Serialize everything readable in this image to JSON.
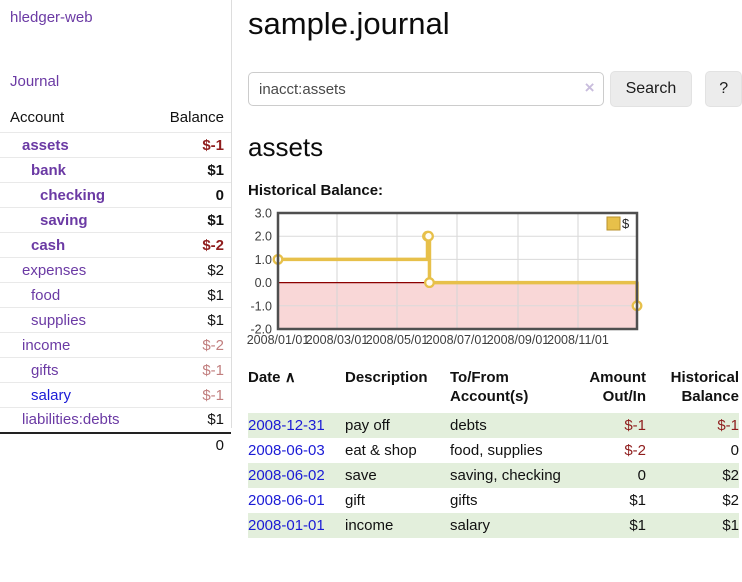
{
  "sidebar": {
    "brand": "hledger-web",
    "journal_link": "Journal",
    "accounts_table": {
      "headers": {
        "account": "Account",
        "balance": "Balance"
      },
      "rows": [
        {
          "label": "assets",
          "indent": 1,
          "bold": true,
          "link_style": "purple",
          "balance": "$-1",
          "balance_style": "neg-strong"
        },
        {
          "label": "bank",
          "indent": 2,
          "bold": true,
          "link_style": "purple",
          "balance": "$1",
          "balance_style": ""
        },
        {
          "label": "checking",
          "indent": 3,
          "bold": true,
          "link_style": "purple",
          "balance": "0",
          "balance_style": ""
        },
        {
          "label": "saving",
          "indent": 3,
          "bold": true,
          "link_style": "purple",
          "balance": "$1",
          "balance_style": ""
        },
        {
          "label": "cash",
          "indent": 2,
          "bold": true,
          "link_style": "purple",
          "balance": "$-2",
          "balance_style": "neg-strong"
        },
        {
          "label": "expenses",
          "indent": 1,
          "bold": false,
          "link_style": "purple",
          "balance": "$2",
          "balance_style": ""
        },
        {
          "label": "food",
          "indent": 2,
          "bold": false,
          "link_style": "purple",
          "balance": "$1",
          "balance_style": ""
        },
        {
          "label": "supplies",
          "indent": 2,
          "bold": false,
          "link_style": "purple",
          "balance": "$1",
          "balance_style": ""
        },
        {
          "label": "income",
          "indent": 1,
          "bold": false,
          "link_style": "purple",
          "balance": "$-2",
          "balance_style": "neg-muted"
        },
        {
          "label": "gifts",
          "indent": 2,
          "bold": false,
          "link_style": "purple",
          "balance": "$-1",
          "balance_style": "neg-muted"
        },
        {
          "label": "salary",
          "indent": 2,
          "bold": false,
          "link_style": "blue",
          "balance": "$-1",
          "balance_style": "neg-muted"
        },
        {
          "label": "liabilities:debts",
          "indent": 1,
          "bold": false,
          "link_style": "purple",
          "balance": "$1",
          "balance_style": ""
        }
      ],
      "total": "0"
    }
  },
  "main": {
    "title": "sample.journal",
    "search": {
      "value": "inacct:assets",
      "clear_glyph": "×",
      "search_label": "Search",
      "help_label": "?"
    },
    "account_heading": "assets",
    "chart_label": "Historical Balance:",
    "register_table": {
      "sort_icon_glyph": "∧",
      "headers": {
        "date": "Date",
        "description": "Description",
        "accounts": "To/From Account(s)",
        "amount": "Amount Out/In",
        "balance": "Historical Balance"
      },
      "rows": [
        {
          "date": "2008-12-31",
          "description": "pay off",
          "accounts": "debts",
          "amount": "$-1",
          "amount_negative": true,
          "balance": "$-1",
          "balance_negative": true
        },
        {
          "date": "2008-06-03",
          "description": "eat & shop",
          "accounts": "food, supplies",
          "amount": "$-2",
          "amount_negative": true,
          "balance": "0",
          "balance_negative": false
        },
        {
          "date": "2008-06-02",
          "description": "save",
          "accounts": "saving, checking",
          "amount": "0",
          "amount_negative": false,
          "balance": "$2",
          "balance_negative": false
        },
        {
          "date": "2008-06-01",
          "description": "gift",
          "accounts": "gifts",
          "amount": "$1",
          "amount_negative": false,
          "balance": "$2",
          "balance_negative": false
        },
        {
          "date": "2008-01-01",
          "description": "income",
          "accounts": "salary",
          "amount": "$1",
          "amount_negative": false,
          "balance": "$1",
          "balance_negative": false
        }
      ]
    }
  },
  "colors": {
    "link_purple": "#6b3aa4",
    "link_blue": "#1b1bd6",
    "negative": "#8f1d1d",
    "negative_muted": "#c17e7e",
    "row_green": "#e3efdc",
    "series_gold": "#e7c04a"
  },
  "chart_data": {
    "type": "line",
    "step": true,
    "title": "Historical Balance",
    "legend": {
      "label": "$",
      "position": "top-right"
    },
    "series": [
      {
        "name": "$",
        "color": "#e7c04a",
        "points": [
          {
            "date": "2008-01-01",
            "day": 0,
            "value": 1
          },
          {
            "date": "2008-06-01",
            "day": 152,
            "value": 2
          },
          {
            "date": "2008-06-02",
            "day": 153,
            "value": 2
          },
          {
            "date": "2008-06-03",
            "day": 154,
            "value": 0
          },
          {
            "date": "2008-12-31",
            "day": 365,
            "value": -1
          }
        ]
      }
    ],
    "x_axis": {
      "min_day": 0,
      "max_day": 365,
      "ticks": [
        {
          "day": 0,
          "label": "2008/01/01"
        },
        {
          "day": 60,
          "label": "2008/03/01"
        },
        {
          "day": 121,
          "label": "2008/05/01"
        },
        {
          "day": 182,
          "label": "2008/07/01"
        },
        {
          "day": 244,
          "label": "2008/09/01"
        },
        {
          "day": 305,
          "label": "2008/11/01"
        }
      ]
    },
    "y_axis": {
      "min": -2,
      "max": 3,
      "ticks": [
        3,
        2,
        1,
        0,
        -1,
        -2
      ],
      "tick_labels": [
        "3.0",
        "2.0",
        "1.0",
        "0.0",
        "-1.0",
        "-2.0"
      ]
    },
    "grid": true,
    "negative_region_color": "#f9d7d7",
    "zero_line_color": "#8b0000",
    "border_color": "#4f4f4f"
  }
}
